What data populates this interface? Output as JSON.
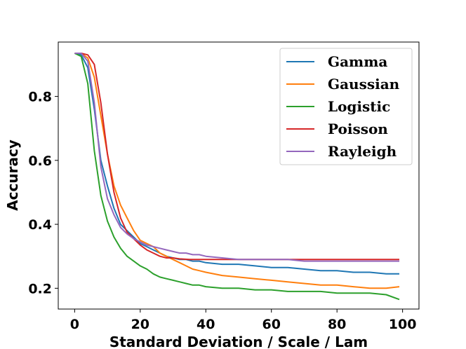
{
  "chart_data": {
    "type": "line",
    "title": "",
    "xlabel": "Standard Deviation / Scale / Lam",
    "ylabel": "Accuracy",
    "xlim": [
      -5,
      105
    ],
    "ylim": [
      0.135,
      0.97
    ],
    "xticks": [
      0,
      20,
      40,
      60,
      80,
      100
    ],
    "yticks": [
      0.2,
      0.4,
      0.6,
      0.8
    ],
    "xtick_labels": [
      "0",
      "20",
      "40",
      "60",
      "80",
      "100"
    ],
    "ytick_labels": [
      "0.2",
      "0.4",
      "0.6",
      "0.8"
    ],
    "legend_position": "top-right",
    "series": [
      {
        "name": "Gamma",
        "color": "#1f77b4",
        "points": [
          [
            0,
            0.935
          ],
          [
            2,
            0.93
          ],
          [
            4,
            0.89
          ],
          [
            6,
            0.76
          ],
          [
            8,
            0.6
          ],
          [
            10,
            0.52
          ],
          [
            12,
            0.45
          ],
          [
            14,
            0.4
          ],
          [
            16,
            0.38
          ],
          [
            18,
            0.36
          ],
          [
            20,
            0.34
          ],
          [
            22,
            0.33
          ],
          [
            24,
            0.32
          ],
          [
            26,
            0.31
          ],
          [
            28,
            0.3
          ],
          [
            30,
            0.295
          ],
          [
            32,
            0.29
          ],
          [
            34,
            0.29
          ],
          [
            36,
            0.285
          ],
          [
            38,
            0.285
          ],
          [
            40,
            0.28
          ],
          [
            45,
            0.275
          ],
          [
            50,
            0.275
          ],
          [
            55,
            0.27
          ],
          [
            60,
            0.265
          ],
          [
            65,
            0.265
          ],
          [
            70,
            0.26
          ],
          [
            75,
            0.255
          ],
          [
            80,
            0.255
          ],
          [
            85,
            0.25
          ],
          [
            90,
            0.25
          ],
          [
            95,
            0.245
          ],
          [
            99,
            0.245
          ]
        ]
      },
      {
        "name": "Gaussian",
        "color": "#ff7f0e",
        "points": [
          [
            0,
            0.935
          ],
          [
            2,
            0.935
          ],
          [
            4,
            0.92
          ],
          [
            6,
            0.86
          ],
          [
            8,
            0.74
          ],
          [
            10,
            0.62
          ],
          [
            12,
            0.52
          ],
          [
            14,
            0.46
          ],
          [
            16,
            0.42
          ],
          [
            18,
            0.38
          ],
          [
            20,
            0.35
          ],
          [
            22,
            0.34
          ],
          [
            24,
            0.33
          ],
          [
            26,
            0.31
          ],
          [
            28,
            0.3
          ],
          [
            30,
            0.29
          ],
          [
            32,
            0.28
          ],
          [
            34,
            0.27
          ],
          [
            36,
            0.26
          ],
          [
            38,
            0.255
          ],
          [
            40,
            0.25
          ],
          [
            45,
            0.24
          ],
          [
            50,
            0.235
          ],
          [
            55,
            0.23
          ],
          [
            60,
            0.225
          ],
          [
            65,
            0.22
          ],
          [
            70,
            0.215
          ],
          [
            75,
            0.21
          ],
          [
            80,
            0.21
          ],
          [
            85,
            0.205
          ],
          [
            90,
            0.2
          ],
          [
            95,
            0.2
          ],
          [
            99,
            0.205
          ]
        ]
      },
      {
        "name": "Logistic",
        "color": "#2ca02c",
        "points": [
          [
            0,
            0.935
          ],
          [
            2,
            0.925
          ],
          [
            4,
            0.84
          ],
          [
            6,
            0.63
          ],
          [
            8,
            0.49
          ],
          [
            10,
            0.41
          ],
          [
            12,
            0.36
          ],
          [
            14,
            0.325
          ],
          [
            16,
            0.3
          ],
          [
            18,
            0.285
          ],
          [
            20,
            0.27
          ],
          [
            22,
            0.26
          ],
          [
            24,
            0.245
          ],
          [
            26,
            0.235
          ],
          [
            28,
            0.23
          ],
          [
            30,
            0.225
          ],
          [
            32,
            0.22
          ],
          [
            34,
            0.215
          ],
          [
            36,
            0.21
          ],
          [
            38,
            0.21
          ],
          [
            40,
            0.205
          ],
          [
            45,
            0.2
          ],
          [
            50,
            0.2
          ],
          [
            55,
            0.195
          ],
          [
            60,
            0.195
          ],
          [
            65,
            0.19
          ],
          [
            70,
            0.19
          ],
          [
            75,
            0.19
          ],
          [
            80,
            0.185
          ],
          [
            85,
            0.185
          ],
          [
            90,
            0.185
          ],
          [
            95,
            0.18
          ],
          [
            99,
            0.165
          ]
        ]
      },
      {
        "name": "Poisson",
        "color": "#d62728",
        "points": [
          [
            0,
            0.935
          ],
          [
            2,
            0.935
          ],
          [
            4,
            0.93
          ],
          [
            6,
            0.9
          ],
          [
            8,
            0.78
          ],
          [
            10,
            0.62
          ],
          [
            12,
            0.5
          ],
          [
            14,
            0.42
          ],
          [
            16,
            0.375
          ],
          [
            18,
            0.355
          ],
          [
            20,
            0.335
          ],
          [
            22,
            0.32
          ],
          [
            24,
            0.31
          ],
          [
            26,
            0.3
          ],
          [
            28,
            0.295
          ],
          [
            30,
            0.295
          ],
          [
            32,
            0.292
          ],
          [
            35,
            0.29
          ],
          [
            40,
            0.29
          ],
          [
            50,
            0.29
          ],
          [
            60,
            0.29
          ],
          [
            70,
            0.29
          ],
          [
            80,
            0.29
          ],
          [
            90,
            0.29
          ],
          [
            99,
            0.29
          ]
        ]
      },
      {
        "name": "Rayleigh",
        "color": "#9467bd",
        "points": [
          [
            0,
            0.935
          ],
          [
            2,
            0.935
          ],
          [
            4,
            0.91
          ],
          [
            6,
            0.78
          ],
          [
            8,
            0.58
          ],
          [
            10,
            0.48
          ],
          [
            12,
            0.43
          ],
          [
            14,
            0.39
          ],
          [
            16,
            0.37
          ],
          [
            18,
            0.355
          ],
          [
            20,
            0.345
          ],
          [
            22,
            0.335
          ],
          [
            24,
            0.33
          ],
          [
            26,
            0.325
          ],
          [
            28,
            0.32
          ],
          [
            30,
            0.315
          ],
          [
            32,
            0.31
          ],
          [
            34,
            0.31
          ],
          [
            36,
            0.305
          ],
          [
            38,
            0.305
          ],
          [
            40,
            0.3
          ],
          [
            45,
            0.295
          ],
          [
            50,
            0.29
          ],
          [
            55,
            0.29
          ],
          [
            60,
            0.29
          ],
          [
            65,
            0.29
          ],
          [
            70,
            0.285
          ],
          [
            75,
            0.285
          ],
          [
            80,
            0.285
          ],
          [
            85,
            0.285
          ],
          [
            90,
            0.285
          ],
          [
            95,
            0.285
          ],
          [
            99,
            0.285
          ]
        ]
      }
    ]
  }
}
